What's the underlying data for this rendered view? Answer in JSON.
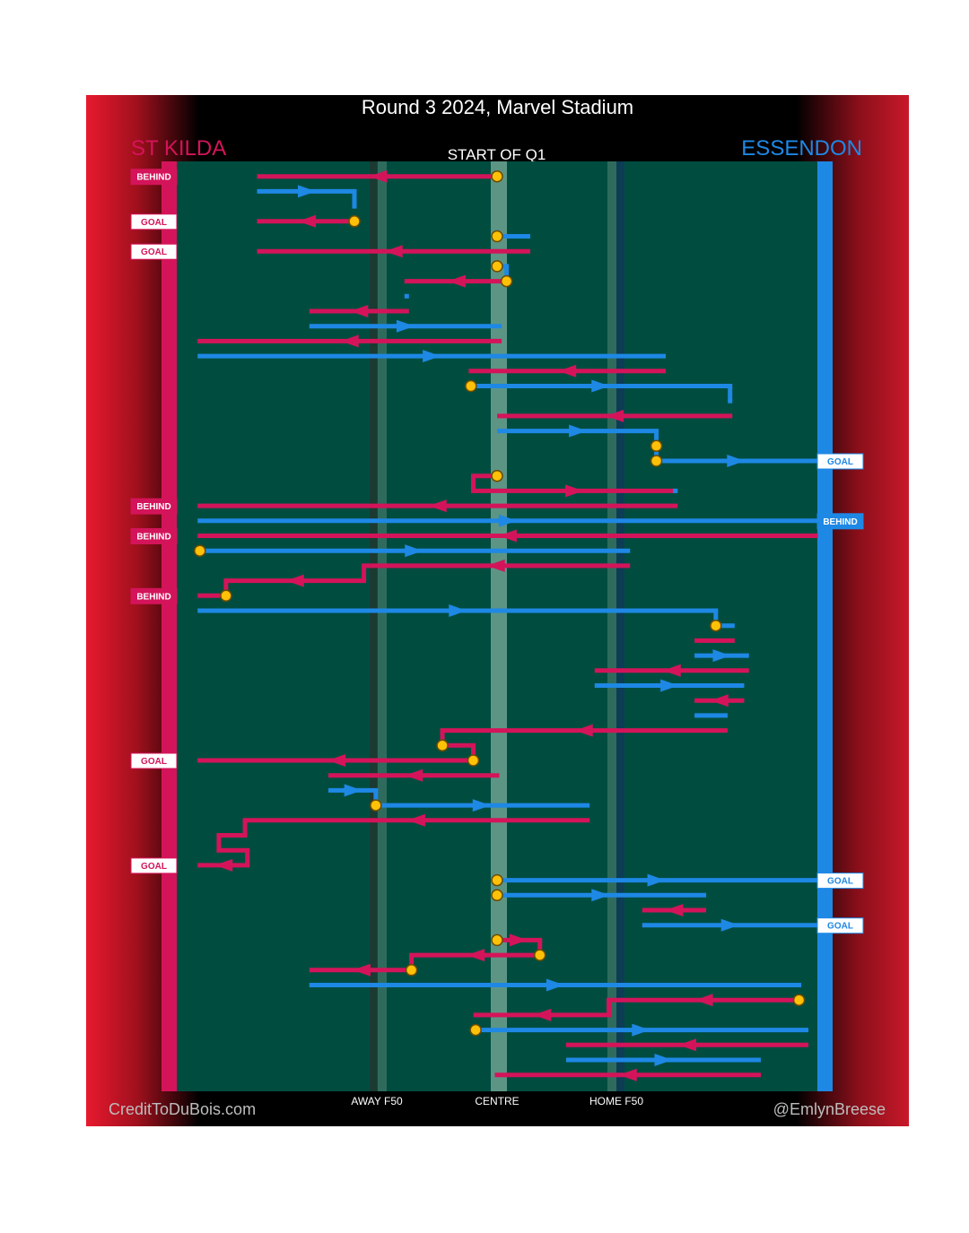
{
  "title": "Round 3 2024, Marvel Stadium",
  "period_label": "START OF Q1",
  "credit": "CreditToDuBois.com",
  "author": "@EmlynBreese",
  "colors": {
    "home": "#d4145a",
    "away": "#1e88e5",
    "field": "#004d40",
    "marker": "#ffc107"
  },
  "chart_data": {
    "type": "line",
    "teams": {
      "left": {
        "name": "ST KILDA",
        "color": "#d4145a"
      },
      "right": {
        "name": "ESSENDON",
        "color": "#1e88e5"
      }
    },
    "zones": [
      "AWAY F50",
      "CENTRE",
      "HOME F50"
    ],
    "chains": [
      {
        "team": "home",
        "segments": [
          [
            0,
            1,
            -1
          ]
        ],
        "events": [
          {
            "label": "BEHIND",
            "seq": 1
          }
        ]
      },
      {
        "team": "away",
        "segments": [
          [
            -1,
            2,
            -0.6
          ],
          [
            -0.6,
            3,
            -0.6
          ]
        ],
        "events": []
      },
      {
        "team": "home",
        "segments": [
          [
            -0.6,
            4,
            -1
          ]
        ],
        "events": [
          {
            "label": "GOAL",
            "seq": 4
          }
        ]
      },
      {
        "team": "away",
        "segments": [
          [
            0,
            5,
            0.13
          ]
        ],
        "events": []
      },
      {
        "team": "home",
        "segments": [
          [
            0.13,
            6,
            -1
          ]
        ],
        "events": [
          {
            "label": "GOAL",
            "seq": 6
          }
        ]
      },
      {
        "team": "away",
        "segments": [
          [
            0,
            7,
            0.04
          ],
          [
            0.04,
            8,
            0.04
          ]
        ],
        "events": []
      },
      {
        "team": "home",
        "segments": [
          [
            0.04,
            8,
            -0.38
          ]
        ],
        "events": []
      },
      {
        "team": "away",
        "segments": [
          [
            -0.38,
            9,
            -0.38
          ]
        ],
        "events": []
      },
      {
        "team": "home",
        "segments": [
          [
            -0.38,
            10,
            -0.78
          ]
        ],
        "events": []
      },
      {
        "team": "away",
        "segments": [
          [
            -0.78,
            11,
            0.01
          ]
        ],
        "events": []
      },
      {
        "team": "home",
        "segments": [
          [
            0.01,
            12,
            -1.25
          ]
        ],
        "events": []
      },
      {
        "team": "away",
        "segments": [
          [
            -1.25,
            13,
            0.7
          ]
        ],
        "events": []
      },
      {
        "team": "home",
        "segments": [
          [
            0.7,
            14,
            -0.11
          ]
        ],
        "events": []
      },
      {
        "team": "away",
        "segments": [
          [
            -0.11,
            15,
            0.98
          ],
          [
            0.98,
            16,
            0.98
          ]
        ],
        "events": []
      },
      {
        "team": "home",
        "segments": [
          [
            0.98,
            17,
            0.01
          ]
        ],
        "events": []
      },
      {
        "team": "away",
        "segments": [
          [
            0.01,
            18,
            0.67
          ],
          [
            0.67,
            19,
            0.67
          ],
          [
            0.67,
            20,
            1.34
          ]
        ],
        "events": [
          {
            "label": "GOAL",
            "seq": 20
          }
        ]
      },
      {
        "team": "home",
        "segments": [
          [
            0,
            21,
            -0.1
          ],
          [
            -0.1,
            22,
            0.75
          ]
        ],
        "events": []
      },
      {
        "team": "away",
        "segments": [
          [
            0.75,
            22,
            0.75
          ]
        ],
        "events": []
      },
      {
        "team": "home",
        "segments": [
          [
            0.75,
            23,
            -1.25
          ]
        ],
        "events": [
          {
            "label": "BEHIND",
            "seq": 23
          }
        ]
      },
      {
        "team": "away",
        "segments": [
          [
            -1.25,
            24,
            1.34
          ]
        ],
        "events": [
          {
            "label": "BEHIND",
            "seq": 24
          }
        ]
      },
      {
        "team": "home",
        "segments": [
          [
            1.34,
            25,
            -1.25
          ]
        ],
        "events": [
          {
            "label": "BEHIND",
            "seq": 25
          }
        ]
      },
      {
        "team": "away",
        "segments": [
          [
            -1.25,
            26,
            0.55
          ]
        ],
        "events": []
      },
      {
        "team": "home",
        "segments": [
          [
            0.55,
            27,
            -0.56
          ],
          [
            -0.56,
            28,
            -1.14
          ],
          [
            -1.14,
            29,
            -1.25
          ]
        ],
        "events": [
          {
            "label": "BEHIND",
            "seq": 29
          }
        ]
      },
      {
        "team": "away",
        "segments": [
          [
            -1.25,
            30,
            0.92
          ],
          [
            0.92,
            31,
            0.99
          ]
        ],
        "events": []
      },
      {
        "team": "home",
        "segments": [
          [
            0.99,
            32,
            0.84
          ]
        ],
        "events": []
      },
      {
        "team": "away",
        "segments": [
          [
            0.84,
            33,
            1.05
          ]
        ],
        "events": []
      },
      {
        "team": "home",
        "segments": [
          [
            1.05,
            34,
            0.42
          ]
        ],
        "events": []
      },
      {
        "team": "away",
        "segments": [
          [
            0.42,
            35,
            1.03
          ]
        ],
        "events": []
      },
      {
        "team": "home",
        "segments": [
          [
            1.03,
            36,
            0.84
          ]
        ],
        "events": []
      },
      {
        "team": "away",
        "segments": [
          [
            0.84,
            37,
            0.96
          ]
        ],
        "events": []
      },
      {
        "team": "home",
        "segments": [
          [
            0.96,
            38,
            -0.23
          ],
          [
            -0.23,
            39,
            -0.1
          ],
          [
            -0.1,
            40,
            -1.25
          ]
        ],
        "events": [
          {
            "label": "GOAL",
            "seq": 40
          }
        ]
      },
      {
        "team": "home",
        "segments": [
          [
            0,
            41,
            -0.7
          ]
        ],
        "events": []
      },
      {
        "team": "away",
        "segments": [
          [
            -0.7,
            42,
            -0.51
          ],
          [
            -0.51,
            43,
            0.38
          ]
        ],
        "events": []
      },
      {
        "team": "home",
        "segments": [
          [
            0.38,
            44,
            -1.06
          ],
          [
            -1.06,
            45,
            -1.17
          ],
          [
            -1.17,
            46,
            -1.05
          ],
          [
            -1.05,
            47,
            -1.25
          ]
        ],
        "events": [
          {
            "label": "GOAL",
            "seq": 47
          }
        ]
      },
      {
        "team": "away",
        "segments": [
          [
            0,
            48,
            1.34
          ]
        ],
        "events": [
          {
            "label": "GOAL",
            "seq": 48
          }
        ]
      },
      {
        "team": "away",
        "segments": [
          [
            0,
            49,
            0.87
          ]
        ],
        "events": []
      },
      {
        "team": "home",
        "segments": [
          [
            0.87,
            50,
            0.62
          ]
        ],
        "events": []
      },
      {
        "team": "away",
        "segments": [
          [
            0.62,
            51,
            1.34
          ]
        ],
        "events": [
          {
            "label": "GOAL",
            "seq": 51
          }
        ]
      },
      {
        "team": "home",
        "segments": [
          [
            0,
            52,
            0.18
          ],
          [
            0.18,
            53,
            -0.36
          ],
          [
            -0.36,
            54,
            -0.78
          ]
        ],
        "events": []
      },
      {
        "team": "away",
        "segments": [
          [
            -0.78,
            55,
            1.27
          ]
        ],
        "events": []
      },
      {
        "team": "home",
        "segments": [
          [
            1.27,
            56,
            0.47
          ],
          [
            0.47,
            57,
            -0.09
          ]
        ],
        "events": []
      },
      {
        "team": "away",
        "segments": [
          [
            -0.09,
            58,
            1.3
          ]
        ],
        "events": []
      },
      {
        "team": "home",
        "segments": [
          [
            1.3,
            59,
            0.3
          ]
        ],
        "events": []
      },
      {
        "team": "away",
        "segments": [
          [
            0.3,
            60,
            1.1
          ]
        ],
        "events": []
      },
      {
        "team": "home",
        "segments": [
          [
            1.1,
            61,
            0.0
          ]
        ],
        "events": []
      }
    ],
    "stoppages": [
      1,
      4,
      5,
      7,
      8,
      15,
      19,
      20,
      21,
      26,
      29,
      31,
      39,
      40,
      43,
      48,
      49,
      52,
      53,
      54,
      56,
      58
    ],
    "legend": "none",
    "grid": false
  }
}
